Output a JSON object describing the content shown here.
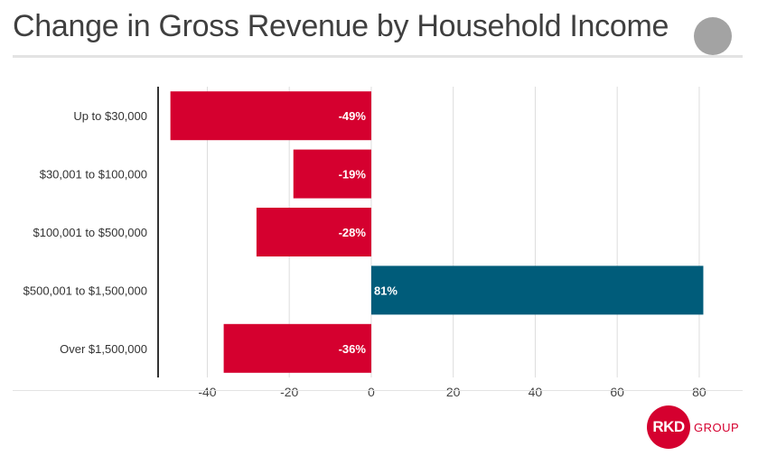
{
  "header": {
    "title": "Change in Gross Revenue by Household Income",
    "circle_color": "#a3a3a3"
  },
  "logo": {
    "mark": "RKD",
    "text": "GROUP",
    "color": "#d5002f"
  },
  "chart_data": {
    "type": "bar",
    "orientation": "horizontal",
    "title": "Change in Gross Revenue by Household Income",
    "categories": [
      "Up to $30,000",
      "$30,001 to $100,000",
      "$100,001 to $500,000",
      "$500,001 to $1,500,000",
      "Over $1,500,000"
    ],
    "values": [
      -49,
      -19,
      -28,
      81,
      -36
    ],
    "data_labels": [
      "-49%",
      "-19%",
      "-28%",
      "81%",
      "-36%"
    ],
    "xlim": [
      -52,
      82
    ],
    "xticks": [
      -40,
      -20,
      0,
      20,
      40,
      60,
      80
    ],
    "grid": true,
    "colors": {
      "negative": "#d5002f",
      "positive": "#005c7a",
      "grid": "#dddddd",
      "axis": "#333333"
    }
  }
}
